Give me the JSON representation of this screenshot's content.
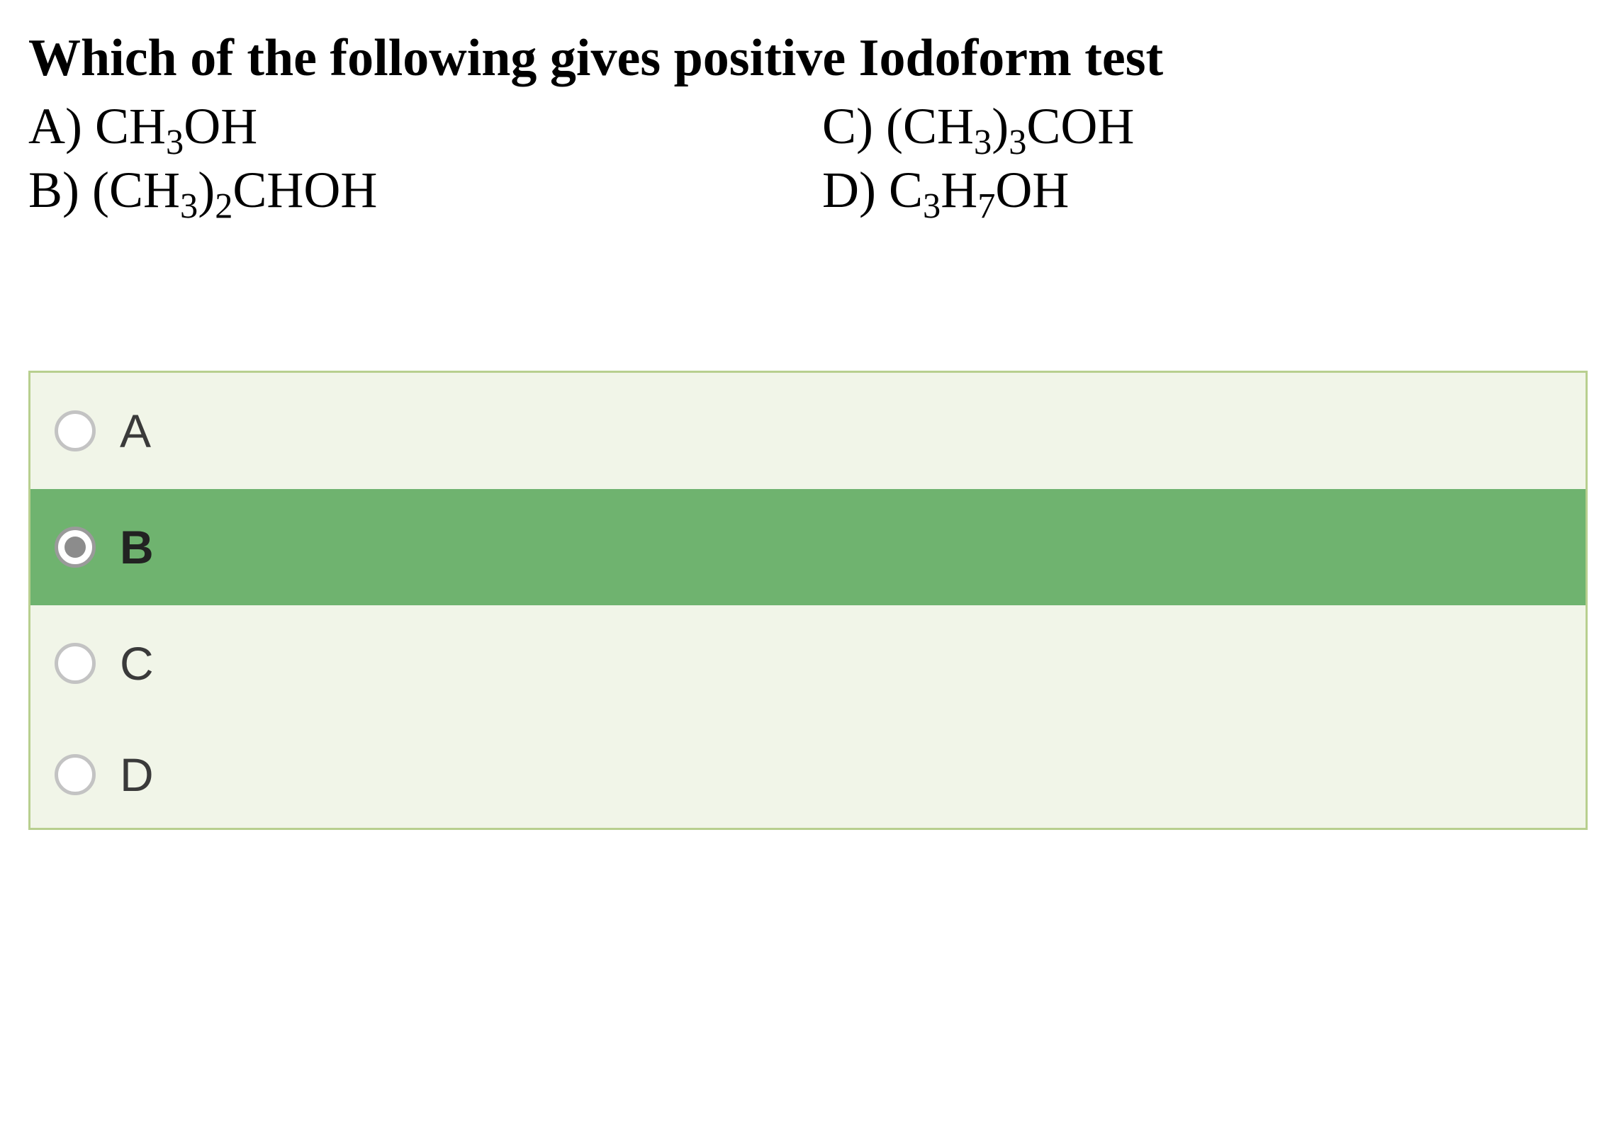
{
  "question": "Which of the following gives positive Iodoform test",
  "options": {
    "a_label": "A) ",
    "a_formula": "CH",
    "a_sub1": "3",
    "a_tail": "OH",
    "b_label": "B) (CH",
    "b_sub1": "3",
    "b_mid": ")",
    "b_sub2": "2",
    "b_tail": "CHOH",
    "c_label": "C) (CH",
    "c_sub1": "3",
    "c_mid": ")",
    "c_sub2": "3",
    "c_tail": "COH",
    "d_label": "D) C",
    "d_sub1": "3",
    "d_mid": "H",
    "d_sub2": "7",
    "d_tail": "OH"
  },
  "answers": {
    "a": "A",
    "b": "B",
    "c": "C",
    "d": "D"
  },
  "colors": {
    "box_border": "#b8cf8f",
    "box_bg": "#f1f5e8",
    "selected_bg": "#6fb36f",
    "radio_border": "#c3c3c3",
    "radio_checked_border": "#9a9a9a",
    "radio_dot": "#8c8c8c",
    "text": "#000000"
  },
  "selected_index": 1
}
